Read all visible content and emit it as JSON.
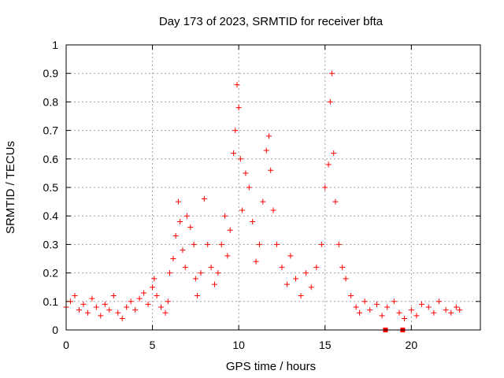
{
  "chart_data": {
    "type": "scatter",
    "title": "Day 173 of 2023, SRMTID for receiver bfta",
    "xlabel": "GPS time / hours",
    "ylabel": "SRMTID / TECUs",
    "xlim": [
      0,
      24
    ],
    "ylim": [
      0,
      1
    ],
    "xticks": [
      0,
      5,
      10,
      15,
      20
    ],
    "xtick_labels": [
      "0",
      "5",
      "10",
      "15",
      "20"
    ],
    "yticks": [
      0,
      0.1,
      0.2,
      0.3,
      0.4,
      0.5,
      0.6,
      0.7,
      0.8,
      0.9,
      1
    ],
    "ytick_labels": [
      "0",
      "0.1",
      "0.2",
      "0.3",
      "0.4",
      "0.5",
      "0.6",
      "0.7",
      "0.8",
      "0.9",
      "1"
    ],
    "grid": true,
    "marker": "+",
    "series": [
      {
        "name": "SRMTID",
        "color": "#ff0000",
        "x": [
          0.0,
          0.25,
          0.5,
          0.75,
          1.0,
          1.25,
          1.5,
          1.75,
          2.0,
          2.25,
          2.5,
          2.75,
          3.0,
          3.25,
          3.5,
          3.75,
          4.0,
          4.25,
          4.5,
          4.75,
          5.0,
          5.1,
          5.25,
          5.5,
          5.75,
          5.9,
          6.0,
          6.2,
          6.35,
          6.5,
          6.6,
          6.75,
          6.9,
          7.0,
          7.2,
          7.4,
          7.5,
          7.6,
          7.8,
          8.0,
          8.2,
          8.4,
          8.6,
          8.8,
          9.0,
          9.2,
          9.35,
          9.5,
          9.7,
          9.8,
          9.9,
          10.0,
          10.1,
          10.2,
          10.4,
          10.6,
          10.8,
          11.0,
          11.2,
          11.4,
          11.6,
          11.75,
          11.85,
          12.0,
          12.2,
          12.5,
          12.8,
          13.0,
          13.3,
          13.6,
          13.9,
          14.2,
          14.5,
          14.8,
          15.0,
          15.2,
          15.3,
          15.4,
          15.5,
          15.6,
          15.8,
          16.0,
          16.2,
          16.5,
          16.8,
          17.0,
          17.3,
          17.6,
          18.0,
          18.3,
          18.6,
          19.0,
          19.3,
          19.6,
          20.0,
          20.3,
          20.6,
          21.0,
          21.3,
          21.6,
          22.0,
          22.3,
          22.6,
          22.8
        ],
        "y": [
          0.08,
          0.1,
          0.12,
          0.07,
          0.09,
          0.06,
          0.11,
          0.08,
          0.05,
          0.09,
          0.07,
          0.12,
          0.06,
          0.04,
          0.08,
          0.1,
          0.07,
          0.11,
          0.13,
          0.09,
          0.15,
          0.18,
          0.12,
          0.08,
          0.06,
          0.1,
          0.2,
          0.25,
          0.33,
          0.45,
          0.38,
          0.28,
          0.22,
          0.4,
          0.36,
          0.3,
          0.18,
          0.12,
          0.2,
          0.46,
          0.3,
          0.22,
          0.16,
          0.2,
          0.3,
          0.4,
          0.26,
          0.35,
          0.62,
          0.7,
          0.86,
          0.78,
          0.6,
          0.42,
          0.55,
          0.5,
          0.38,
          0.24,
          0.3,
          0.45,
          0.63,
          0.68,
          0.56,
          0.42,
          0.3,
          0.22,
          0.16,
          0.26,
          0.18,
          0.12,
          0.2,
          0.15,
          0.22,
          0.3,
          0.5,
          0.58,
          0.8,
          0.9,
          0.62,
          0.45,
          0.3,
          0.22,
          0.18,
          0.12,
          0.08,
          0.06,
          0.1,
          0.07,
          0.09,
          0.05,
          0.08,
          0.1,
          0.06,
          0.04,
          0.07,
          0.05,
          0.09,
          0.08,
          0.06,
          0.1,
          0.07,
          0.06,
          0.08,
          0.07
        ]
      },
      {
        "name": "Square markers",
        "color": "#ff0000",
        "x": [
          18.5,
          19.5
        ],
        "y": [
          0.0,
          0.0
        ]
      }
    ]
  }
}
